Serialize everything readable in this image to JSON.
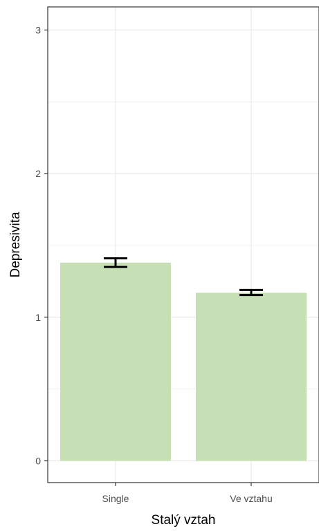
{
  "chart_data": {
    "type": "bar",
    "title": "",
    "xlabel": "Stalý vztah",
    "ylabel": "Depresivita",
    "categories": [
      "Single",
      "Ve vztahu"
    ],
    "values": [
      1.38,
      1.17
    ],
    "error_low": [
      1.35,
      1.155
    ],
    "error_high": [
      1.41,
      1.19
    ],
    "ylim": [
      0,
      3
    ],
    "yticks": [
      0,
      1,
      2,
      3
    ],
    "ytick_labels": [
      "0",
      "1",
      "2",
      "3"
    ],
    "grid": true,
    "legend": "none",
    "bar_color": "#c6dfb5",
    "panel_border_color": "#333333",
    "grid_color": "#ebebeb",
    "error_bar_color": "#000000"
  }
}
